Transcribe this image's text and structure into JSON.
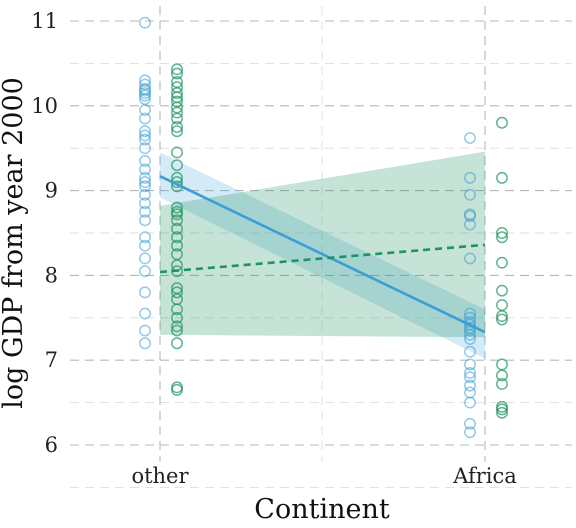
{
  "chart_data": {
    "type": "scatter",
    "title": "",
    "xlabel": "Continent",
    "ylabel": "log GDP from year 2000",
    "categories": [
      "other",
      "Africa"
    ],
    "ylim": [
      5.75,
      11.1
    ],
    "yticks": [
      "6",
      "7",
      "8",
      "9",
      "10",
      "11"
    ],
    "grid": true,
    "colors": {
      "blue": "#3a9fd6",
      "green": "#1e9463"
    },
    "series": [
      {
        "color": "#3a9fd6",
        "line_style": "solid",
        "points": {
          "other": [
            10.98,
            10.3,
            10.25,
            10.2,
            10.18,
            10.15,
            10.12,
            10.08,
            9.95,
            9.85,
            9.7,
            9.65,
            9.6,
            9.5,
            9.35,
            9.25,
            9.15,
            9.1,
            9.05,
            8.95,
            8.85,
            8.75,
            8.65,
            8.45,
            8.35,
            8.2,
            8.05,
            7.8,
            7.55,
            7.35,
            7.2
          ],
          "Africa": [
            9.62,
            9.15,
            8.95,
            8.72,
            8.7,
            8.6,
            8.2,
            7.55,
            7.5,
            7.45,
            7.42,
            7.38,
            7.35,
            7.3,
            7.25,
            7.1,
            6.95,
            6.85,
            6.8,
            6.7,
            6.62,
            6.5,
            6.25,
            6.15
          ]
        },
        "fit": {
          "other": 9.17,
          "Africa": 7.33
        },
        "band": {
          "other": [
            8.92,
            9.45
          ],
          "Africa": [
            7.02,
            7.6
          ]
        }
      },
      {
        "color": "#1e9463",
        "line_style": "dashed",
        "points": {
          "other": [
            10.43,
            10.38,
            10.28,
            10.22,
            10.15,
            10.1,
            10.05,
            9.98,
            9.92,
            9.85,
            9.75,
            9.7,
            9.45,
            9.3,
            9.15,
            9.1,
            9.05,
            8.8,
            8.75,
            8.72,
            8.65,
            8.55,
            8.45,
            8.35,
            8.25,
            8.12,
            8.05,
            7.85,
            7.8,
            7.72,
            7.6,
            7.5,
            7.4,
            7.35,
            7.2,
            6.68,
            6.65
          ],
          "Africa": [
            9.8,
            9.15,
            8.5,
            8.45,
            8.15,
            7.82,
            7.65,
            7.52,
            7.48,
            6.95,
            6.82,
            6.72,
            6.45,
            6.42,
            6.38
          ]
        },
        "fit": {
          "other": 8.04,
          "Africa": 8.36
        },
        "band": {
          "other": [
            7.3,
            8.82
          ],
          "Africa": [
            7.27,
            9.46
          ]
        }
      }
    ]
  }
}
